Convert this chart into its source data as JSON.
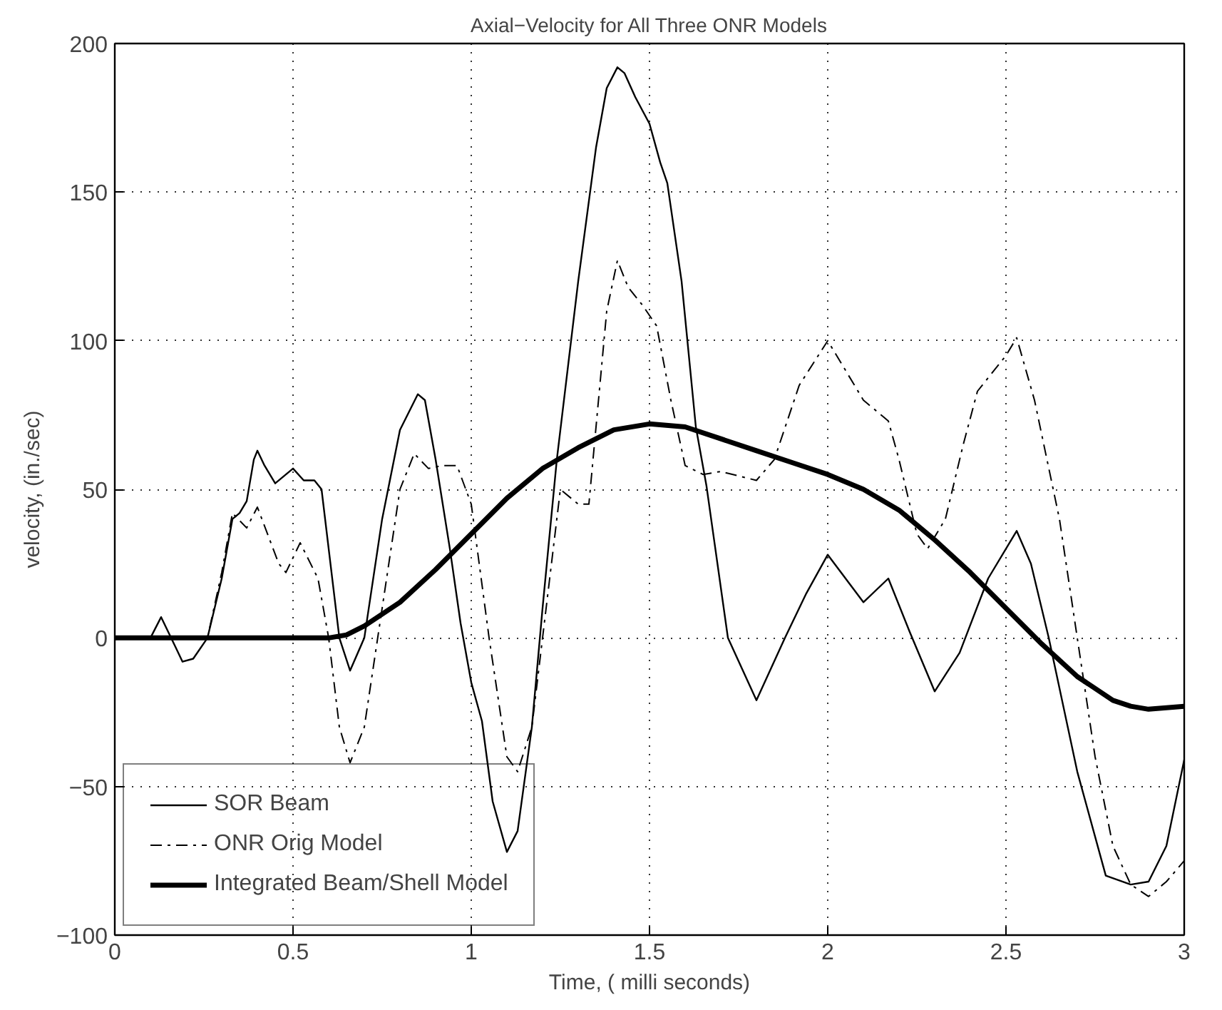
{
  "chart_data": {
    "type": "line",
    "title": "Axial−Velocity for All Three ONR Models",
    "xlabel": "Time, ( milli seconds)",
    "ylabel": "velocity, (in./sec)",
    "xlim": [
      0,
      3
    ],
    "ylim": [
      -100,
      200
    ],
    "xticks": [
      0,
      0.5,
      1,
      1.5,
      2,
      2.5,
      3
    ],
    "yticks": [
      -100,
      -50,
      0,
      50,
      100,
      150,
      200
    ],
    "grid": true,
    "legend": "bottom left",
    "series": [
      {
        "name": "SOR Beam",
        "color": "#000000",
        "line_style": "solid",
        "x": [
          0,
          0.1,
          0.13,
          0.17,
          0.19,
          0.22,
          0.26,
          0.3,
          0.33,
          0.35,
          0.37,
          0.39,
          0.4,
          0.42,
          0.45,
          0.5,
          0.53,
          0.56,
          0.58,
          0.6,
          0.63,
          0.66,
          0.7,
          0.75,
          0.8,
          0.85,
          0.87,
          0.9,
          0.94,
          0.97,
          1.0,
          1.03,
          1.06,
          1.1,
          1.13,
          1.17,
          1.2,
          1.24,
          1.3,
          1.35,
          1.38,
          1.41,
          1.43,
          1.46,
          1.5,
          1.53,
          1.55,
          1.59,
          1.63,
          1.66,
          1.72,
          1.8,
          1.88,
          1.94,
          2.0,
          2.05,
          2.1,
          2.17,
          2.23,
          2.3,
          2.37,
          2.45,
          2.53,
          2.57,
          2.62,
          2.7,
          2.78,
          2.85,
          2.9,
          2.95,
          3.0
        ],
        "values": [
          0,
          0,
          7,
          -3,
          -8,
          -7,
          0,
          20,
          40,
          42,
          46,
          60,
          63,
          58,
          52,
          57,
          53,
          53,
          50,
          30,
          0,
          -11,
          0,
          40,
          70,
          82,
          80,
          60,
          30,
          5,
          -15,
          -28,
          -55,
          -72,
          -65,
          -30,
          10,
          60,
          120,
          165,
          185,
          192,
          190,
          182,
          173,
          160,
          153,
          120,
          71,
          51,
          0,
          -21,
          0,
          15,
          28,
          20,
          12,
          20,
          2,
          -18,
          -5,
          20,
          36,
          25,
          0,
          -45,
          -80,
          -83,
          -82,
          -70,
          -41
        ]
      },
      {
        "name": "ONR Orig Model",
        "color": "#000000",
        "line_style": "dashed",
        "x": [
          0,
          0.26,
          0.3,
          0.33,
          0.37,
          0.4,
          0.46,
          0.48,
          0.52,
          0.57,
          0.6,
          0.63,
          0.66,
          0.7,
          0.75,
          0.8,
          0.84,
          0.88,
          0.92,
          0.96,
          1.0,
          1.05,
          1.1,
          1.13,
          1.17,
          1.22,
          1.25,
          1.3,
          1.33,
          1.38,
          1.41,
          1.44,
          1.48,
          1.52,
          1.56,
          1.6,
          1.65,
          1.7,
          1.8,
          1.85,
          1.92,
          2.0,
          2.05,
          2.1,
          2.17,
          2.2,
          2.25,
          2.28,
          2.33,
          2.38,
          2.42,
          2.5,
          2.53,
          2.58,
          2.65,
          2.7,
          2.75,
          2.8,
          2.85,
          2.9,
          2.95,
          3.0
        ],
        "values": [
          0,
          0,
          22,
          42,
          37,
          44,
          25,
          22,
          32,
          20,
          0,
          -30,
          -42,
          -30,
          10,
          50,
          62,
          57,
          58,
          58,
          45,
          0,
          -40,
          -45,
          -30,
          20,
          50,
          45,
          45,
          110,
          127,
          118,
          112,
          105,
          80,
          58,
          55,
          56,
          53,
          60,
          85,
          100,
          90,
          80,
          73,
          60,
          35,
          30,
          40,
          65,
          83,
          95,
          101,
          80,
          40,
          0,
          -40,
          -70,
          -83,
          -87,
          -82,
          -75
        ]
      },
      {
        "name": "Integrated Beam/Shell Model",
        "color": "#000000",
        "line_style": "solid",
        "x": [
          0,
          0.6,
          0.65,
          0.7,
          0.8,
          0.9,
          1.0,
          1.1,
          1.2,
          1.3,
          1.4,
          1.5,
          1.6,
          1.7,
          1.8,
          1.9,
          2.0,
          2.1,
          2.2,
          2.3,
          2.4,
          2.5,
          2.6,
          2.7,
          2.8,
          2.85,
          2.9,
          3.0
        ],
        "values": [
          0,
          0,
          1,
          4,
          12,
          23,
          35,
          47,
          57,
          64,
          70,
          72,
          71,
          67,
          63,
          59,
          55,
          50,
          43,
          33,
          22,
          10,
          -2,
          -13,
          -21,
          -23,
          -24,
          -23
        ]
      }
    ]
  }
}
